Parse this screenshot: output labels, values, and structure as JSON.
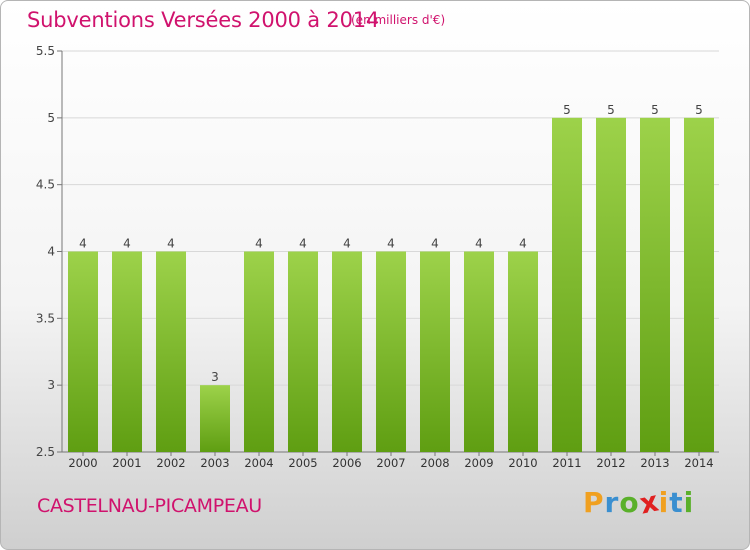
{
  "header": {
    "title": "Subventions Versées 2000 à 2014",
    "subtitle": "(en milliers d'€)"
  },
  "footer": {
    "commune": "CASTELNAU-PICAMPEAU",
    "logo": {
      "letters": [
        "P",
        "r",
        "o",
        "x",
        "i",
        "t",
        "i"
      ],
      "colors": [
        "#f0a020",
        "#3a8fd0",
        "#5ab02a",
        "#e02020",
        "#f0a020",
        "#3a8fd0",
        "#5ab02a"
      ]
    }
  },
  "colors": {
    "accent": "#d0126d",
    "bar_top": "#9dd24a",
    "bar_bottom": "#5f9e12",
    "grid": "#d8d8d8"
  },
  "chart_data": {
    "type": "bar",
    "categories": [
      "2000",
      "2001",
      "2002",
      "2003",
      "2004",
      "2005",
      "2006",
      "2007",
      "2008",
      "2009",
      "2010",
      "2011",
      "2012",
      "2013",
      "2014"
    ],
    "values": [
      4,
      4,
      4,
      3,
      4,
      4,
      4,
      4,
      4,
      4,
      4,
      5,
      5,
      5,
      5
    ],
    "data_labels": [
      "4",
      "4",
      "4",
      "3",
      "4",
      "4",
      "4",
      "4",
      "4",
      "4",
      "4",
      "5",
      "5",
      "5",
      "5"
    ],
    "yticks": [
      "2.5",
      "3",
      "3.5",
      "4",
      "4.5",
      "5",
      "5.5"
    ],
    "ylim": [
      2.5,
      5.5
    ],
    "grid": true,
    "legend": "none"
  }
}
